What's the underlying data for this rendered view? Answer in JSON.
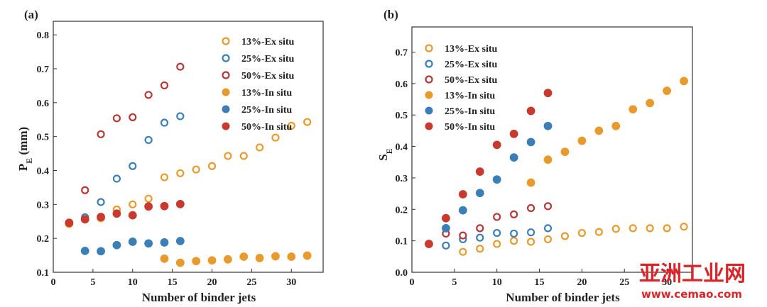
{
  "chart_data": [
    {
      "type": "scatter",
      "panel_label": "(a)",
      "xlabel": "Number of binder jets",
      "ylabel_main": "P",
      "ylabel_sub": "E",
      "ylabel_unit": " (mm)",
      "xlim": [
        0,
        34
      ],
      "ylim": [
        0.1,
        0.84
      ],
      "xticks": [
        0,
        5,
        10,
        15,
        20,
        25,
        30
      ],
      "yticks": [
        0.1,
        0.2,
        0.3,
        0.4,
        0.5,
        0.6,
        0.7,
        0.8
      ],
      "xtick_labels": [
        "0",
        "5",
        "10",
        "15",
        "20",
        "25",
        "30"
      ],
      "ytick_labels": [
        "0.1",
        "0.2",
        "0.3",
        "0.4",
        "0.5",
        "0.6",
        "0.7",
        "0.8"
      ],
      "legend_position": "top-right",
      "series": [
        {
          "name": "13%-Ex situ",
          "marker": "open",
          "color": "#e89a2c",
          "x": [
            8,
            10,
            12,
            14,
            16,
            18,
            20,
            22,
            24,
            26,
            28,
            30,
            32
          ],
          "y": [
            0.285,
            0.3,
            0.317,
            0.38,
            0.392,
            0.403,
            0.413,
            0.443,
            0.443,
            0.468,
            0.497,
            0.532,
            0.543
          ]
        },
        {
          "name": "25%-Ex situ",
          "marker": "open",
          "color": "#3b7fb6",
          "x": [
            4,
            6,
            8,
            10,
            12,
            14,
            16
          ],
          "y": [
            0.262,
            0.307,
            0.376,
            0.413,
            0.49,
            0.541,
            0.56
          ]
        },
        {
          "name": "50%-Ex situ",
          "marker": "open",
          "color": "#b8383a",
          "x": [
            4,
            6,
            8,
            10,
            12,
            14,
            16
          ],
          "y": [
            0.342,
            0.507,
            0.554,
            0.557,
            0.623,
            0.651,
            0.706
          ]
        },
        {
          "name": "13%-In situ",
          "marker": "filled",
          "color": "#e89a2c",
          "x": [
            2,
            6,
            14,
            16,
            18,
            20,
            22,
            24,
            26,
            28,
            30,
            32
          ],
          "y": [
            0.243,
            0.26,
            0.14,
            0.128,
            0.133,
            0.135,
            0.138,
            0.146,
            0.142,
            0.147,
            0.146,
            0.149
          ]
        },
        {
          "name": "25%-In situ",
          "marker": "filled",
          "color": "#3b7fb6",
          "x": [
            4,
            6,
            8,
            10,
            12,
            14,
            16
          ],
          "y": [
            0.163,
            0.162,
            0.18,
            0.19,
            0.185,
            0.188,
            0.192
          ]
        },
        {
          "name": "50%-In situ",
          "marker": "filled",
          "color": "#c8392e",
          "x": [
            2,
            4,
            6,
            8,
            10,
            12,
            14,
            16
          ],
          "y": [
            0.246,
            0.256,
            0.263,
            0.273,
            0.268,
            0.294,
            0.295,
            0.301
          ]
        }
      ]
    },
    {
      "type": "scatter",
      "panel_label": "(b)",
      "xlabel": "Number of binder jets",
      "ylabel_main": "S",
      "ylabel_sub": "E",
      "ylabel_unit": "",
      "xlim": [
        0,
        33
      ],
      "ylim": [
        0.0,
        0.78
      ],
      "xticks": [
        0,
        5,
        10,
        15,
        20,
        25,
        30
      ],
      "yticks": [
        0.0,
        0.1,
        0.2,
        0.3,
        0.4,
        0.5,
        0.6,
        0.7
      ],
      "xtick_labels": [
        "0",
        "5",
        "10",
        "15",
        "20",
        "25",
        "30"
      ],
      "ytick_labels": [
        "0.0",
        "0.1",
        "0.2",
        "0.3",
        "0.4",
        "0.5",
        "0.6",
        "0.7"
      ],
      "legend_position": "top-left",
      "series": [
        {
          "name": "13%-Ex situ",
          "marker": "open",
          "color": "#e89a2c",
          "x": [
            6,
            8,
            10,
            12,
            14,
            16,
            18,
            20,
            22,
            24,
            26,
            28,
            30,
            32
          ],
          "y": [
            0.065,
            0.075,
            0.09,
            0.1,
            0.097,
            0.105,
            0.115,
            0.125,
            0.128,
            0.138,
            0.14,
            0.14,
            0.14,
            0.145
          ]
        },
        {
          "name": "25%-Ex situ",
          "marker": "open",
          "color": "#3b7fb6",
          "x": [
            4,
            6,
            8,
            10,
            12,
            14,
            16
          ],
          "y": [
            0.085,
            0.105,
            0.11,
            0.125,
            0.123,
            0.127,
            0.14
          ]
        },
        {
          "name": "50%-Ex situ",
          "marker": "open",
          "color": "#b8383a",
          "x": [
            4,
            6,
            8,
            10,
            12,
            14,
            16
          ],
          "y": [
            0.123,
            0.117,
            0.14,
            0.176,
            0.184,
            0.204,
            0.21
          ]
        },
        {
          "name": "13%-In situ",
          "marker": "filled",
          "color": "#e89a2c",
          "x": [
            14,
            16,
            18,
            20,
            22,
            24,
            26,
            28,
            30,
            32
          ],
          "y": [
            0.285,
            0.358,
            0.383,
            0.418,
            0.45,
            0.465,
            0.518,
            0.538,
            0.577,
            0.608
          ]
        },
        {
          "name": "25%-In situ",
          "marker": "filled",
          "color": "#3b7fb6",
          "x": [
            4,
            6,
            8,
            10,
            12,
            14,
            16
          ],
          "y": [
            0.14,
            0.197,
            0.252,
            0.295,
            0.365,
            0.414,
            0.465
          ]
        },
        {
          "name": "50%-In situ",
          "marker": "filled",
          "color": "#c8392e",
          "x": [
            2,
            4,
            6,
            8,
            10,
            12,
            14,
            16
          ],
          "y": [
            0.09,
            0.172,
            0.248,
            0.32,
            0.405,
            0.44,
            0.513,
            0.57
          ]
        }
      ]
    }
  ],
  "watermark": {
    "chinese_text": "亚洲工业网",
    "url_text": "www.cemao.com"
  }
}
